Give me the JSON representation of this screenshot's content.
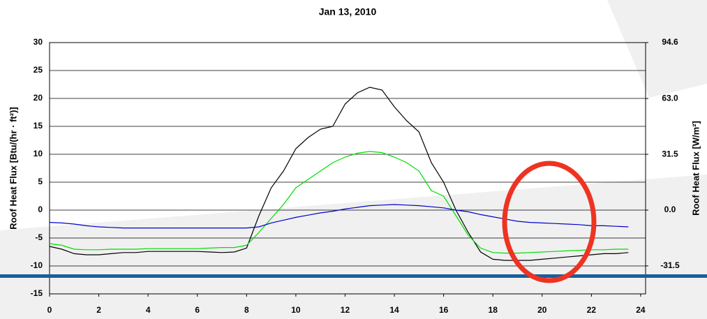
{
  "chart_data": {
    "type": "line",
    "title": "Jan 13, 2010",
    "y_label": "Roof Heat Flux [Btu/(hr · ft²)]",
    "y2_label": "Roof Heat Flux [W/m²]",
    "x": [
      0,
      0.5,
      1,
      1.5,
      2,
      2.5,
      3,
      3.5,
      4,
      4.5,
      5,
      5.5,
      6,
      6.5,
      7,
      7.5,
      8,
      8.5,
      9,
      9.5,
      10,
      10.5,
      11,
      11.5,
      12,
      12.5,
      13,
      13.5,
      14,
      14.5,
      15,
      15.5,
      16,
      16.5,
      17,
      17.5,
      18,
      18.5,
      19,
      19.5,
      20,
      20.5,
      21,
      21.5,
      22,
      22.5,
      23,
      23.5
    ],
    "series": [
      {
        "color": "#000000",
        "values": [
          -6.5,
          -7,
          -7.8,
          -8,
          -8,
          -7.8,
          -7.6,
          -7.6,
          -7.4,
          -7.4,
          -7.4,
          -7.4,
          -7.4,
          -7.5,
          -7.6,
          -7.5,
          -6.8,
          -1,
          4,
          7,
          11,
          13,
          14.5,
          15,
          19,
          21,
          22,
          21.5,
          18.5,
          16,
          14,
          8.5,
          5,
          0,
          -4,
          -7.5,
          -8.8,
          -9,
          -9,
          -9,
          -8.8,
          -8.6,
          -8.4,
          -8.2,
          -8,
          -7.8,
          -7.8,
          -7.6
        ]
      },
      {
        "color": "#00dd00",
        "values": [
          -6,
          -6.3,
          -7,
          -7.1,
          -7.1,
          -7,
          -7,
          -7,
          -6.9,
          -6.9,
          -6.9,
          -6.9,
          -6.9,
          -6.8,
          -6.7,
          -6.7,
          -6.3,
          -4,
          -1.5,
          1,
          4,
          5.5,
          7,
          8.5,
          9.5,
          10.2,
          10.5,
          10.3,
          9.5,
          8.5,
          7,
          3.5,
          2.5,
          -1,
          -4.5,
          -6.8,
          -7.6,
          -7.7,
          -7.7,
          -7.6,
          -7.5,
          -7.4,
          -7.3,
          -7.2,
          -7.1,
          -7.1,
          -7,
          -7
        ]
      },
      {
        "color": "#0000cc",
        "values": [
          -2.2,
          -2.3,
          -2.5,
          -2.8,
          -3,
          -3.1,
          -3.2,
          -3.2,
          -3.2,
          -3.2,
          -3.2,
          -3.2,
          -3.2,
          -3.2,
          -3.2,
          -3.2,
          -3.2,
          -3,
          -2.3,
          -1.8,
          -1.3,
          -0.9,
          -0.5,
          -0.2,
          0.2,
          0.5,
          0.8,
          0.9,
          1,
          0.9,
          0.8,
          0.6,
          0.4,
          0,
          -0.3,
          -0.8,
          -1.2,
          -1.6,
          -2,
          -2.2,
          -2.3,
          -2.4,
          -2.5,
          -2.6,
          -2.8,
          -2.8,
          -2.9,
          -3
        ]
      }
    ],
    "xlim": [
      0,
      24.2
    ],
    "xticks": [
      0,
      2,
      4,
      6,
      8,
      10,
      12,
      14,
      16,
      18,
      20,
      22,
      24
    ],
    "ylim": [
      -15,
      30
    ],
    "yticks": [
      -15,
      -10,
      -5,
      0,
      5,
      10,
      15,
      20,
      25,
      30
    ],
    "y2lim": [
      -47.3,
      94.6
    ],
    "y2ticks": [
      -31.5,
      {
        "value": 0,
        "label": "0.0"
      },
      31.5,
      {
        "value": 63,
        "label": "63.0"
      },
      94.6
    ],
    "grid": true
  }
}
